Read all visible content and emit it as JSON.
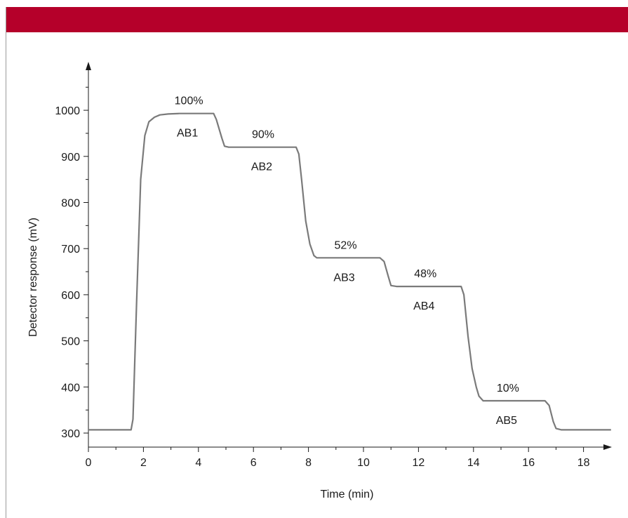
{
  "colors": {
    "header": "#b5002a",
    "line": "#7a7a7a",
    "axis": "#1a1a1a"
  },
  "chart_data": {
    "type": "line",
    "xlabel": "Time (min)",
    "ylabel": "Detector response (mV)",
    "xlim": [
      0,
      19
    ],
    "ylim": [
      270,
      1100
    ],
    "x_ticks": [
      0,
      2,
      4,
      6,
      8,
      10,
      12,
      14,
      16,
      18
    ],
    "y_ticks": [
      300,
      400,
      500,
      600,
      700,
      800,
      900,
      1000
    ],
    "grid": false,
    "series": [
      {
        "x": [
          0,
          1.55,
          1.62,
          1.75,
          1.9,
          2.05,
          2.2,
          2.4,
          2.6,
          2.9,
          3.3,
          4.0,
          4.55,
          4.65,
          4.85,
          4.95,
          5.1,
          6.0,
          7.2,
          7.55,
          7.65,
          7.75,
          7.9,
          8.05,
          8.2,
          8.3,
          9.5,
          10.6,
          10.75,
          10.9,
          11.0,
          11.2,
          12.5,
          13.55,
          13.65,
          13.8,
          13.95,
          14.1,
          14.2,
          14.35,
          15.5,
          16.6,
          16.75,
          16.9,
          17.0,
          17.2,
          19.0
        ],
        "y": [
          307,
          307,
          330,
          580,
          850,
          945,
          975,
          985,
          990,
          992,
          993,
          993,
          993,
          980,
          940,
          922,
          920,
          920,
          920,
          920,
          905,
          850,
          760,
          710,
          685,
          680,
          680,
          680,
          672,
          640,
          620,
          618,
          618,
          618,
          600,
          510,
          440,
          400,
          380,
          370,
          370,
          370,
          360,
          325,
          310,
          307,
          307
        ]
      }
    ],
    "annotations": [
      {
        "pct": "100%",
        "name": "AB1",
        "x": 3.6
      },
      {
        "pct": "90%",
        "name": "AB2",
        "x": 6.3
      },
      {
        "pct": "52%",
        "name": "AB3",
        "x": 9.3
      },
      {
        "pct": "48%",
        "name": "AB4",
        "x": 12.2
      },
      {
        "pct": "10%",
        "name": "AB5",
        "x": 15.2
      }
    ]
  }
}
